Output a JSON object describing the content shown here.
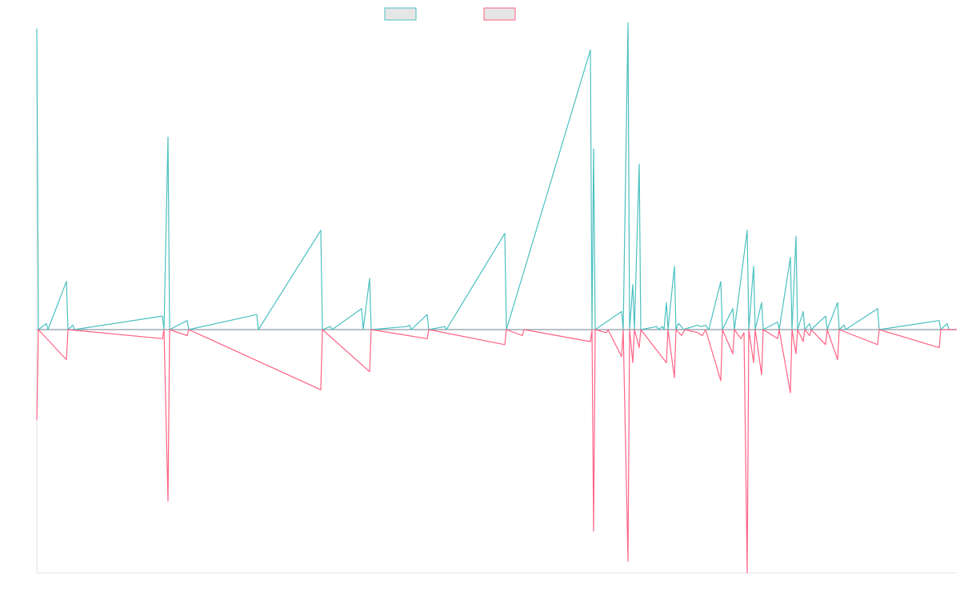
{
  "colors": {
    "series_a": "#4bc0c0",
    "series_b": "#ff6384",
    "legend_fill": "#e6e6e6",
    "axis": "#e0e0e0",
    "baseline": "#8a9aa8"
  },
  "chart_data": {
    "type": "line",
    "title": "",
    "xlabel": "",
    "ylabel": "",
    "grid": false,
    "legend_position": "top-center",
    "x_range": [
      0,
      1150
    ],
    "ylim": [
      -1,
      1
    ],
    "series": [
      {
        "label": "",
        "color": "#4bc0c0",
        "points": [
          [
            0,
            1.0
          ],
          [
            2,
            0
          ],
          [
            12,
            0.02
          ],
          [
            14,
            0
          ],
          [
            37,
            0.16
          ],
          [
            39,
            0
          ],
          [
            45,
            0.015
          ],
          [
            47,
            0
          ],
          [
            157,
            0.045
          ],
          [
            159,
            0
          ],
          [
            164,
            0.64
          ],
          [
            166,
            0
          ],
          [
            188,
            0.03
          ],
          [
            190,
            0
          ],
          [
            275,
            0.05
          ],
          [
            277,
            0
          ],
          [
            355,
            0.33
          ],
          [
            357,
            0
          ],
          [
            367,
            0.01
          ],
          [
            369,
            0
          ],
          [
            406,
            0.07
          ],
          [
            408,
            0
          ],
          [
            416,
            0.17
          ],
          [
            418,
            0
          ],
          [
            462,
            0.01
          ],
          [
            466,
            0.015
          ],
          [
            468,
            0
          ],
          [
            488,
            0.05
          ],
          [
            490,
            0
          ],
          [
            510,
            0.01
          ],
          [
            512,
            0
          ],
          [
            585,
            0.32
          ],
          [
            587,
            0
          ],
          [
            692,
            0.93
          ],
          [
            694,
            0
          ],
          [
            696,
            0.6
          ],
          [
            698,
            0
          ],
          [
            731,
            0.06
          ],
          [
            733,
            0
          ],
          [
            739,
            1.02
          ],
          [
            741,
            0
          ],
          [
            745,
            0.15
          ],
          [
            747,
            0
          ],
          [
            753,
            0.55
          ],
          [
            755,
            0
          ],
          [
            775,
            0.01
          ],
          [
            777,
            0
          ],
          [
            782,
            0.01
          ],
          [
            784,
            0
          ],
          [
            787,
            0.09
          ],
          [
            789,
            0
          ],
          [
            797,
            0.21
          ],
          [
            799,
            0
          ],
          [
            802,
            0.02
          ],
          [
            806,
            0.01
          ],
          [
            808,
            0
          ],
          [
            826,
            0.015
          ],
          [
            830,
            0.01
          ],
          [
            836,
            0.015
          ],
          [
            840,
            0
          ],
          [
            855,
            0.16
          ],
          [
            857,
            0
          ],
          [
            870,
            0.07
          ],
          [
            872,
            0
          ],
          [
            888,
            0.33
          ],
          [
            890,
            0
          ],
          [
            896,
            0.21
          ],
          [
            898,
            0
          ],
          [
            906,
            0.09
          ],
          [
            908,
            0
          ],
          [
            926,
            0.025
          ],
          [
            928,
            0
          ],
          [
            942,
            0.24
          ],
          [
            944,
            0
          ],
          [
            949,
            0.31
          ],
          [
            951,
            0
          ],
          [
            958,
            0.06
          ],
          [
            960,
            0
          ],
          [
            966,
            0.02
          ],
          [
            968,
            0
          ],
          [
            986,
            0.045
          ],
          [
            988,
            0
          ],
          [
            1001,
            0.09
          ],
          [
            1003,
            0
          ],
          [
            1009,
            0.015
          ],
          [
            1011,
            0
          ],
          [
            1051,
            0.07
          ],
          [
            1053,
            0
          ],
          [
            1128,
            0.03
          ],
          [
            1130,
            0
          ],
          [
            1138,
            0.02
          ],
          [
            1140,
            0
          ]
        ]
      },
      {
        "label": "",
        "color": "#ff6384",
        "points": [
          [
            0,
            -0.3
          ],
          [
            2,
            0
          ],
          [
            37,
            -0.1
          ],
          [
            39,
            0
          ],
          [
            157,
            -0.03
          ],
          [
            159,
            0
          ],
          [
            164,
            -0.57
          ],
          [
            166,
            0
          ],
          [
            188,
            -0.02
          ],
          [
            190,
            0
          ],
          [
            355,
            -0.2
          ],
          [
            357,
            0
          ],
          [
            416,
            -0.14
          ],
          [
            418,
            0
          ],
          [
            488,
            -0.03
          ],
          [
            490,
            0
          ],
          [
            585,
            -0.05
          ],
          [
            587,
            0
          ],
          [
            607,
            -0.02
          ],
          [
            609,
            0
          ],
          [
            692,
            -0.04
          ],
          [
            694,
            0
          ],
          [
            696,
            -0.67
          ],
          [
            698,
            0
          ],
          [
            712,
            -0.01
          ],
          [
            714,
            0
          ],
          [
            731,
            -0.09
          ],
          [
            733,
            0
          ],
          [
            739,
            -0.77
          ],
          [
            741,
            0
          ],
          [
            745,
            -0.11
          ],
          [
            747,
            0
          ],
          [
            753,
            -0.06
          ],
          [
            755,
            0
          ],
          [
            787,
            -0.11
          ],
          [
            789,
            0
          ],
          [
            797,
            -0.16
          ],
          [
            799,
            0
          ],
          [
            806,
            -0.02
          ],
          [
            810,
            0
          ],
          [
            826,
            -0.01
          ],
          [
            832,
            -0.02
          ],
          [
            836,
            0
          ],
          [
            855,
            -0.17
          ],
          [
            857,
            0
          ],
          [
            870,
            -0.08
          ],
          [
            872,
            0
          ],
          [
            880,
            -0.03
          ],
          [
            884,
            -0.01
          ],
          [
            888,
            -1.02
          ],
          [
            890,
            0
          ],
          [
            896,
            -0.11
          ],
          [
            898,
            0
          ],
          [
            906,
            -0.15
          ],
          [
            908,
            0
          ],
          [
            926,
            -0.03
          ],
          [
            928,
            0
          ],
          [
            942,
            -0.21
          ],
          [
            944,
            0
          ],
          [
            949,
            -0.08
          ],
          [
            951,
            0
          ],
          [
            958,
            -0.04
          ],
          [
            960,
            0
          ],
          [
            966,
            -0.02
          ],
          [
            968,
            0
          ],
          [
            986,
            -0.05
          ],
          [
            988,
            0
          ],
          [
            1001,
            -0.1
          ],
          [
            1003,
            0
          ],
          [
            1051,
            -0.05
          ],
          [
            1053,
            0
          ],
          [
            1128,
            -0.06
          ],
          [
            1130,
            0
          ]
        ]
      }
    ]
  }
}
